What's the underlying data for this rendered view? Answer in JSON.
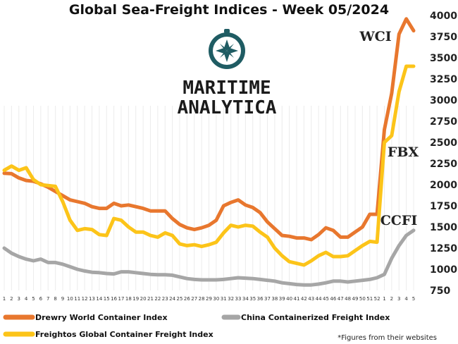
{
  "chart_data": {
    "type": "line",
    "title": "Global Sea-Freight Indices -  Week 05/2024",
    "ylim": [
      750,
      4000
    ],
    "yticks": [
      750,
      1000,
      1250,
      1500,
      1750,
      2000,
      2250,
      2500,
      2750,
      3000,
      3250,
      3500,
      3750,
      4000
    ],
    "x": [
      "1",
      "2",
      "3",
      "4",
      "5",
      "6",
      "7",
      "8",
      "9",
      "10",
      "11",
      "12",
      "13",
      "14",
      "15",
      "16",
      "17",
      "18",
      "19",
      "20",
      "21",
      "22",
      "23",
      "24",
      "25",
      "26",
      "27",
      "28",
      "29",
      "30",
      "31",
      "32",
      "33",
      "34",
      "35",
      "36",
      "37",
      "38",
      "39",
      "40",
      "41",
      "42",
      "43",
      "44",
      "45",
      "46",
      "47",
      "48",
      "49",
      "50",
      "51",
      "52",
      "1",
      "2",
      "3",
      "4",
      "5"
    ],
    "grid": true,
    "series": [
      {
        "name": "Drewry World Container Index",
        "short_label": "WCI",
        "color": "#e8772e",
        "values": [
          2135,
          2130,
          2080,
          2050,
          2040,
          2010,
          1970,
          1920,
          1870,
          1820,
          1800,
          1780,
          1740,
          1720,
          1720,
          1780,
          1750,
          1760,
          1740,
          1720,
          1690,
          1690,
          1690,
          1600,
          1530,
          1490,
          1470,
          1490,
          1520,
          1580,
          1750,
          1790,
          1820,
          1760,
          1730,
          1670,
          1560,
          1480,
          1400,
          1390,
          1370,
          1370,
          1350,
          1410,
          1490,
          1460,
          1380,
          1380,
          1440,
          1500,
          1650,
          1650,
          2650,
          3080,
          3780,
          3960,
          3820
        ]
      },
      {
        "name": "China Containerized Freight Index",
        "short_label": "CCFI",
        "color": "#a6a6a6",
        "values": [
          1250,
          1190,
          1150,
          1120,
          1100,
          1120,
          1080,
          1080,
          1060,
          1030,
          1000,
          980,
          965,
          960,
          950,
          945,
          970,
          970,
          960,
          950,
          940,
          935,
          935,
          930,
          910,
          890,
          880,
          875,
          875,
          875,
          880,
          890,
          900,
          895,
          890,
          880,
          870,
          860,
          840,
          830,
          820,
          815,
          815,
          825,
          840,
          860,
          860,
          850,
          860,
          870,
          880,
          900,
          940,
          1130,
          1280,
          1400,
          1460
        ]
      },
      {
        "name": "Freightos Global Container Freight Index",
        "short_label": "FBX",
        "color": "#fcc419",
        "values": [
          2170,
          2220,
          2170,
          2200,
          2060,
          2000,
          1990,
          1980,
          1800,
          1580,
          1460,
          1480,
          1470,
          1410,
          1400,
          1600,
          1580,
          1500,
          1440,
          1440,
          1400,
          1380,
          1430,
          1400,
          1300,
          1280,
          1290,
          1270,
          1290,
          1320,
          1430,
          1520,
          1500,
          1520,
          1510,
          1440,
          1380,
          1250,
          1160,
          1090,
          1070,
          1050,
          1100,
          1160,
          1200,
          1150,
          1150,
          1160,
          1220,
          1280,
          1330,
          1320,
          2500,
          2580,
          3100,
          3400,
          3400
        ]
      }
    ],
    "legend": [
      {
        "name": "Drewry World Container Index",
        "color": "#e8772e"
      },
      {
        "name": "China Containerized Freight Index",
        "color": "#a6a6a6"
      },
      {
        "name": "Freightos Global Container Freight Index",
        "color": "#fcc419"
      }
    ],
    "legend_position": "bottom",
    "note": "*Figures from their websites"
  },
  "logo": {
    "line1": "MARITIME",
    "line2": "ANALYTICA",
    "icon": "compass-icon",
    "color": "#1f5c63"
  }
}
